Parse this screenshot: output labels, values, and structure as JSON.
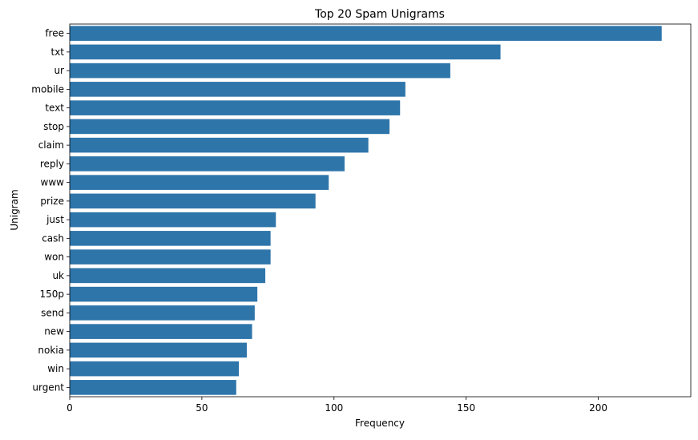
{
  "chart_data": {
    "type": "bar",
    "orientation": "horizontal",
    "title": "Top 20 Spam Unigrams",
    "xlabel": "Frequency",
    "ylabel": "Unigram",
    "xlim": [
      0,
      235
    ],
    "xticks": [
      0,
      50,
      100,
      150,
      200
    ],
    "grid": false,
    "legend": "none",
    "bar_color": "#2e75aa",
    "categories": [
      "free",
      "txt",
      "ur",
      "mobile",
      "text",
      "stop",
      "claim",
      "reply",
      "www",
      "prize",
      "just",
      "cash",
      "won",
      "uk",
      "150p",
      "send",
      "new",
      "nokia",
      "win",
      "urgent"
    ],
    "values": [
      224,
      163,
      144,
      127,
      125,
      121,
      113,
      104,
      98,
      93,
      78,
      76,
      76,
      74,
      71,
      70,
      69,
      67,
      64,
      63
    ]
  }
}
